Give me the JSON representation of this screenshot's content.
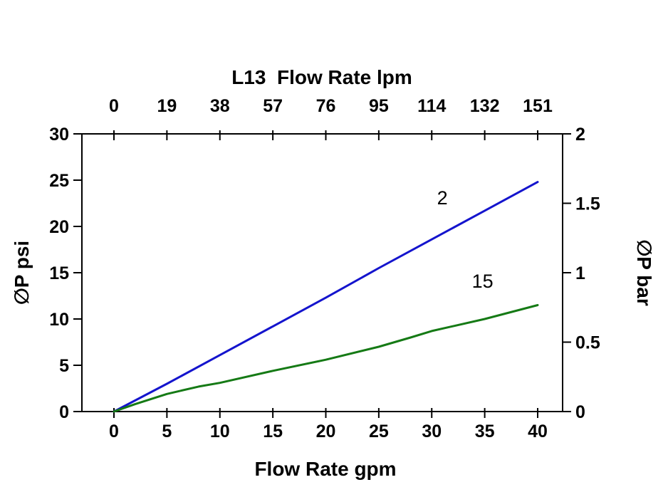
{
  "chart_data": {
    "type": "line",
    "title_top_axis": "L13  Flow Rate lpm",
    "xlabel_bottom": "Flow Rate gpm",
    "ylabel_left": "∅P psi",
    "ylabel_right": "∅P bar",
    "xlim": [
      0,
      40
    ],
    "ylim_left": [
      0,
      30
    ],
    "ylim_right": [
      0,
      2
    ],
    "x_bottom_ticks": [
      0,
      5,
      10,
      15,
      20,
      25,
      30,
      35,
      40
    ],
    "x_top_ticks": [
      0,
      19,
      38,
      57,
      76,
      95,
      114,
      132,
      151
    ],
    "y_left_ticks": [
      0,
      5,
      10,
      15,
      20,
      25,
      30
    ],
    "y_right_ticks": [
      0,
      0.5,
      1,
      1.5,
      2
    ],
    "grid": false,
    "legend": "none (inline series labels)",
    "frame_color": "#000000",
    "series": [
      {
        "name": "2",
        "color": "#1414cd",
        "x": [
          0,
          5,
          10,
          15,
          20,
          25,
          30,
          35,
          40
        ],
        "y": [
          0,
          3.0,
          6.1,
          9.2,
          12.3,
          15.5,
          18.6,
          21.7,
          24.8
        ],
        "label_pos": {
          "x": 31,
          "y": 22.4
        }
      },
      {
        "name": "15",
        "color": "#157a15",
        "x": [
          0,
          2,
          5,
          8,
          10,
          15,
          20,
          25,
          28,
          30,
          35,
          40
        ],
        "y": [
          0,
          0.8,
          1.9,
          2.7,
          3.1,
          4.4,
          5.6,
          7.0,
          8.0,
          8.7,
          10.0,
          11.5
        ],
        "label_pos": {
          "x": 34.8,
          "y": 13.4
        }
      }
    ]
  }
}
